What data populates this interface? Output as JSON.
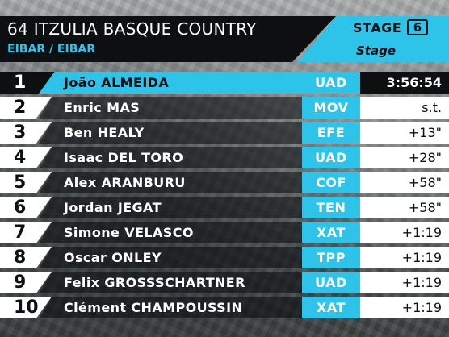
{
  "header": {
    "race_title": "64 ITZULIA BASQUE COUNTRY",
    "location": "EIBAR / EIBAR",
    "stage_label": "STAGE",
    "stage_number": "6",
    "stage_type": "Stage"
  },
  "colors": {
    "accent": "#2ec4ea",
    "dark": "#0d0f11",
    "light": "#ffffff"
  },
  "results": [
    {
      "position": "1",
      "rider": "João ALMEIDA",
      "team": "UAD",
      "time": "3:56:54"
    },
    {
      "position": "2",
      "rider": "Enric MAS",
      "team": "MOV",
      "time": "s.t."
    },
    {
      "position": "3",
      "rider": "Ben HEALY",
      "team": "EFE",
      "time": "+13\""
    },
    {
      "position": "4",
      "rider": "Isaac DEL TORO",
      "team": "UAD",
      "time": "+28\""
    },
    {
      "position": "5",
      "rider": "Alex ARANBURU",
      "team": "COF",
      "time": "+58\""
    },
    {
      "position": "6",
      "rider": "Jordan JEGAT",
      "team": "TEN",
      "time": "+58\""
    },
    {
      "position": "7",
      "rider": "Simone VELASCO",
      "team": "XAT",
      "time": "+1:19"
    },
    {
      "position": "8",
      "rider": "Oscar ONLEY",
      "team": "TPP",
      "time": "+1:19"
    },
    {
      "position": "9",
      "rider": "Felix GROSSSCHARTNER",
      "team": "UAD",
      "time": "+1:19"
    },
    {
      "position": "10",
      "rider": "Clément CHAMPOUSSIN",
      "team": "XAT",
      "time": "+1:19"
    }
  ]
}
